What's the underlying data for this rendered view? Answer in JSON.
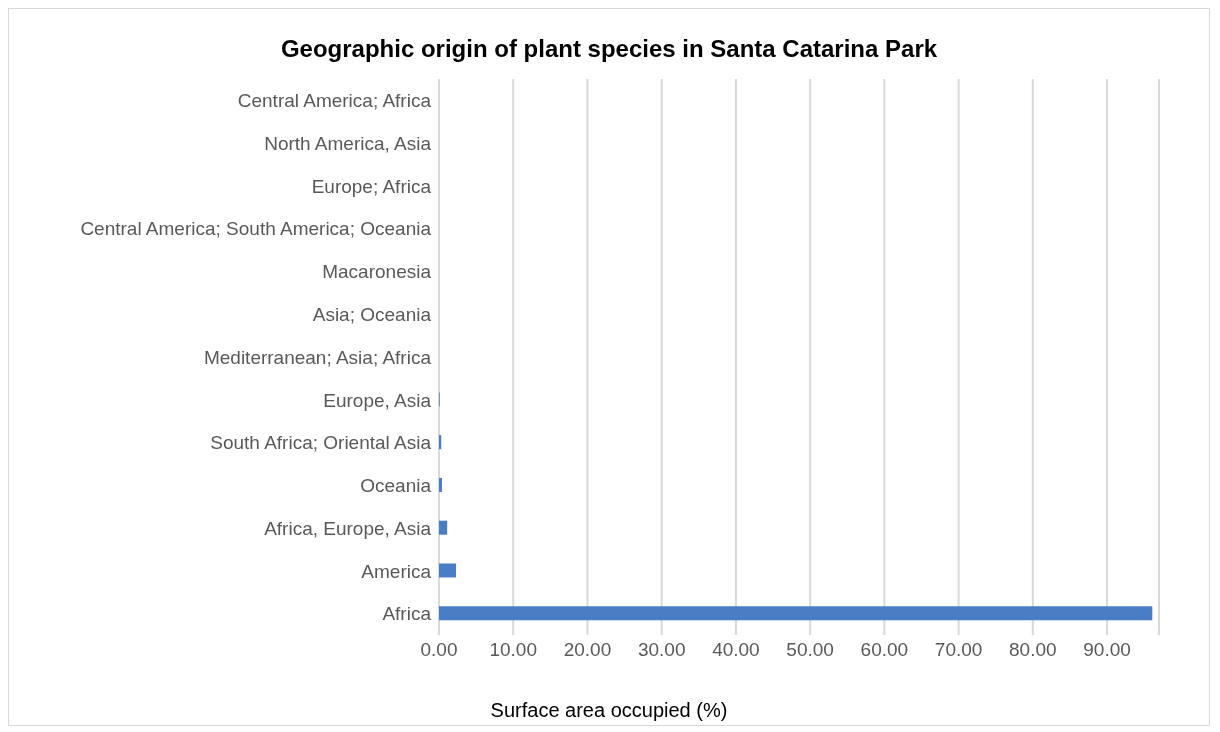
{
  "chart_data": {
    "type": "bar",
    "orientation": "horizontal",
    "title": "Geographic origin of plant species in Santa Catarina Park",
    "xlabel": "Surface area occupied (%)",
    "categories": [
      "Central America; Africa",
      "North America, Asia",
      "Europe; Africa",
      "Central America; South America; Oceania",
      "Macaronesia",
      "Asia; Oceania",
      "Mediterranean; Asia; Africa",
      "Europe, Asia",
      "South Africa; Oriental Asia",
      "Oceania",
      "Africa, Europe, Asia",
      "America",
      "Africa"
    ],
    "values": [
      0,
      0,
      0,
      0,
      0,
      0,
      0,
      0.1,
      0.3,
      0.4,
      1.1,
      2.3,
      96.1
    ],
    "color": "#4a7ec4",
    "xlim": [
      0,
      97
    ],
    "xticks": [
      {
        "value": 0,
        "label": "0.00"
      },
      {
        "value": 10,
        "label": "10.00"
      },
      {
        "value": 20,
        "label": "20.00"
      },
      {
        "value": 30,
        "label": "30.00"
      },
      {
        "value": 40,
        "label": "40.00"
      },
      {
        "value": 50,
        "label": "50.00"
      },
      {
        "value": 60,
        "label": "60.00"
      },
      {
        "value": 70,
        "label": "70.00"
      },
      {
        "value": 80,
        "label": "80.00"
      },
      {
        "value": 90,
        "label": "90.00"
      }
    ],
    "grid": "x"
  }
}
